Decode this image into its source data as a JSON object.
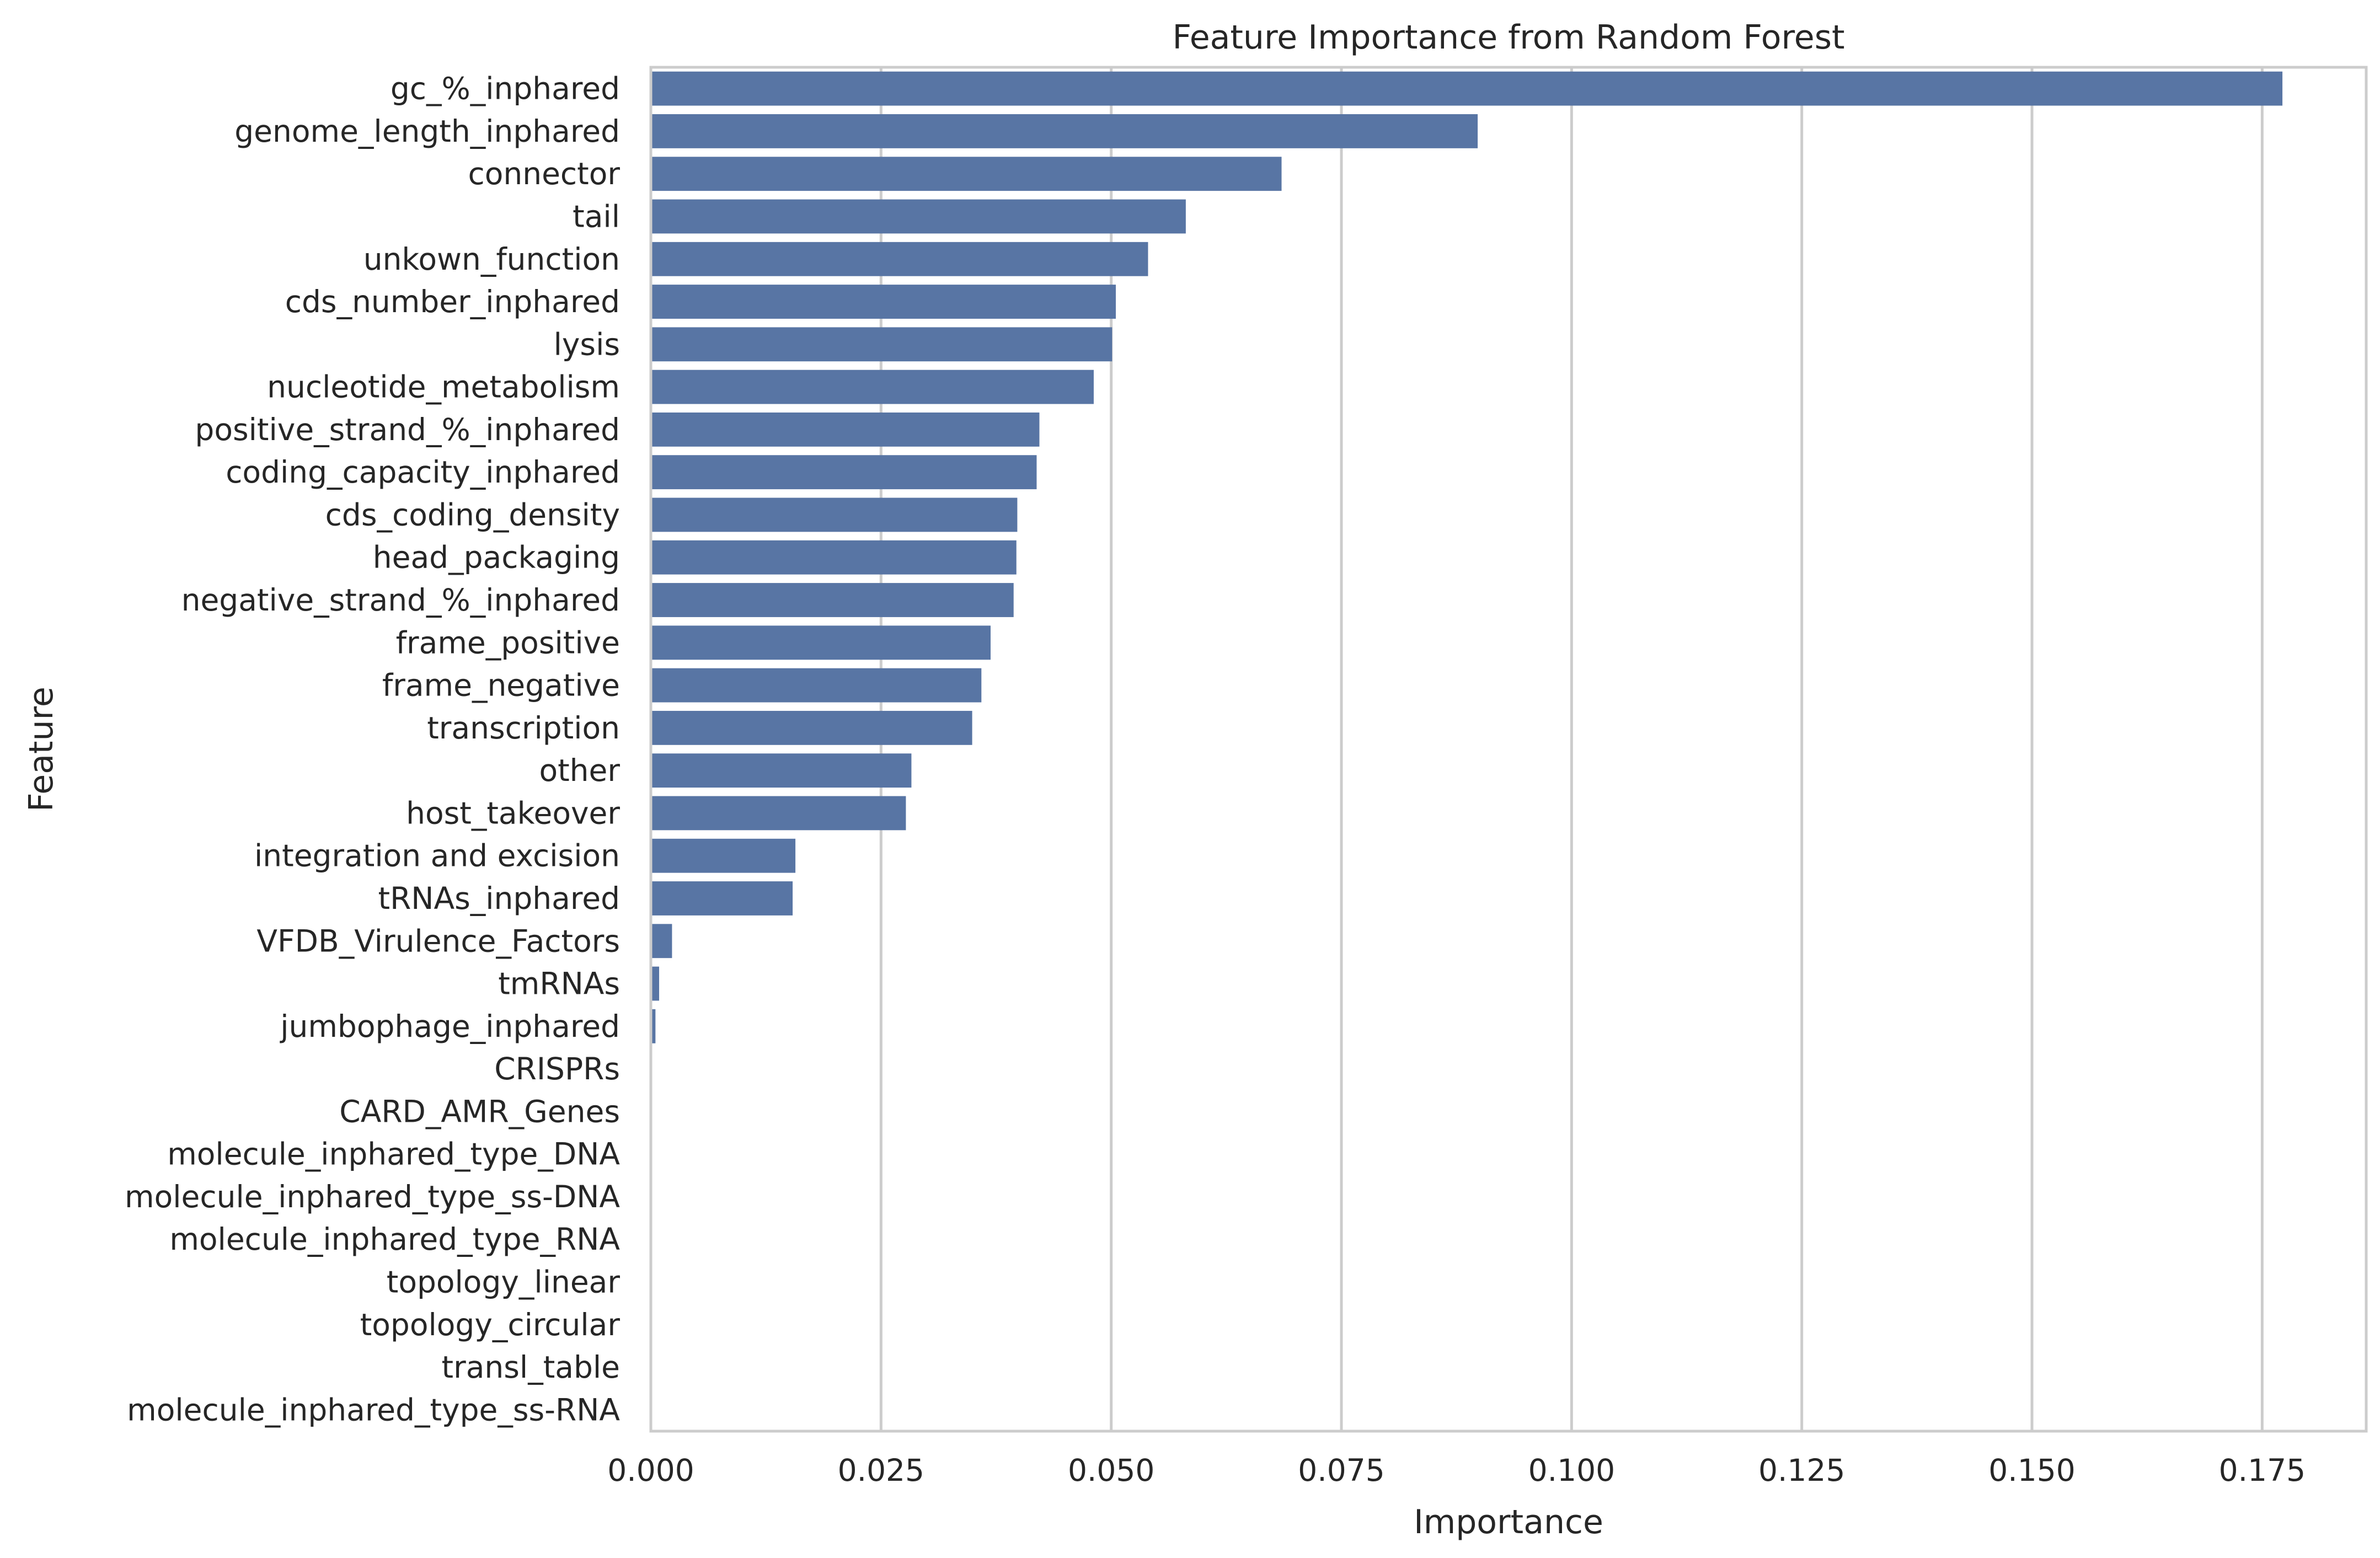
{
  "chart_data": {
    "type": "bar",
    "orientation": "horizontal",
    "title": "Feature Importance from Random Forest",
    "xlabel": "Importance",
    "ylabel": "Feature",
    "xlim": [
      0,
      0.1863
    ],
    "xticks": [
      0.0,
      0.025,
      0.05,
      0.075,
      0.1,
      0.125,
      0.15,
      0.175
    ],
    "xtick_labels": [
      "0.000",
      "0.025",
      "0.050",
      "0.075",
      "0.100",
      "0.125",
      "0.150",
      "0.175"
    ],
    "grid": true,
    "bar_color": "#5875a4",
    "categories": [
      "gc_%_inphared",
      "genome_length_inphared",
      "connector",
      "tail",
      "unkown_function",
      "cds_number_inphared",
      "lysis",
      "nucleotide_metabolism",
      "positive_strand_%_inphared",
      "coding_capacity_inphared",
      "cds_coding_density",
      "head_packaging",
      "negative_strand_%_inphared",
      "frame_positive",
      "frame_negative",
      "transcription",
      "other",
      "host_takeover",
      "integration and excision",
      "tRNAs_inphared",
      "VFDB_Virulence_Factors",
      "tmRNAs",
      "jumbophage_inphared",
      "CRISPRs",
      "CARD_AMR_Genes",
      "molecule_inphared_type_DNA",
      "molecule_inphared_type_ss-DNA",
      "molecule_inphared_type_RNA",
      "topology_linear",
      "topology_circular",
      "transl_table",
      "molecule_inphared_type_ss-RNA"
    ],
    "values": [
      0.1772,
      0.0898,
      0.0685,
      0.0581,
      0.054,
      0.0505,
      0.0501,
      0.0481,
      0.0422,
      0.0419,
      0.0398,
      0.0397,
      0.0394,
      0.0369,
      0.0359,
      0.0349,
      0.0283,
      0.0277,
      0.0157,
      0.0154,
      0.0023,
      0.0009,
      0.0005,
      0.0,
      0.0,
      0.0,
      0.0,
      0.0,
      0.0,
      0.0,
      0.0,
      0.0
    ]
  }
}
